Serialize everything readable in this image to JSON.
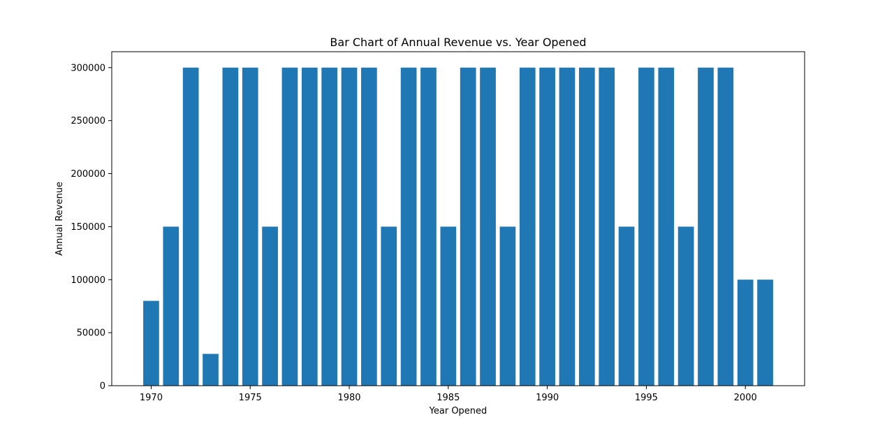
{
  "chart_data": {
    "type": "bar",
    "title": "Bar Chart of Annual Revenue vs. Year Opened",
    "xlabel": "Year Opened",
    "ylabel": "Annual Revenue",
    "x": [
      1970,
      1971,
      1972,
      1973,
      1974,
      1975,
      1976,
      1977,
      1978,
      1979,
      1980,
      1981,
      1982,
      1983,
      1984,
      1985,
      1986,
      1987,
      1988,
      1989,
      1990,
      1991,
      1992,
      1993,
      1994,
      1995,
      1996,
      1997,
      1998,
      1999,
      2000,
      2001
    ],
    "values": [
      80000,
      150000,
      300000,
      30000,
      300000,
      300000,
      150000,
      300000,
      300000,
      300000,
      300000,
      300000,
      150000,
      300000,
      300000,
      150000,
      300000,
      300000,
      150000,
      300000,
      300000,
      300000,
      300000,
      300000,
      150000,
      300000,
      300000,
      150000,
      300000,
      300000,
      100000,
      100000
    ],
    "xticks": [
      1970,
      1975,
      1980,
      1985,
      1990,
      1995,
      2000
    ],
    "yticks": [
      0,
      50000,
      100000,
      150000,
      200000,
      250000,
      300000
    ],
    "xlim": [
      1968.01,
      2002.99
    ],
    "ylim": [
      0,
      315000
    ],
    "bar_color": "#1f77b4",
    "grid": false,
    "legend": "none"
  }
}
